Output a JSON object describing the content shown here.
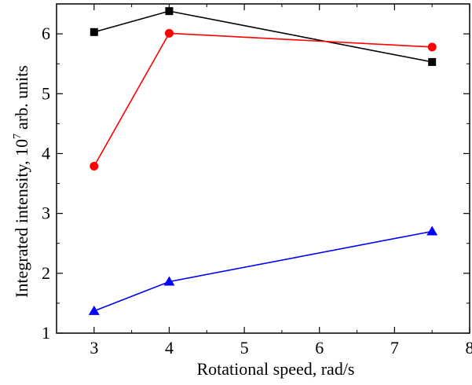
{
  "chart_data": {
    "type": "line",
    "xlabel": "Rotational speed, rad/s",
    "ylabel_main": "Integrated intensity, 10",
    "ylabel_sup": "7",
    "ylabel_tail": "arb. units",
    "xlim": [
      2.5,
      8
    ],
    "ylim": [
      1,
      6.5
    ],
    "xticks": [
      3,
      4,
      5,
      6,
      7,
      8
    ],
    "yticks": [
      1,
      2,
      3,
      4,
      5,
      6
    ],
    "x": [
      3,
      4,
      7.5
    ],
    "series": [
      {
        "marker": "square",
        "color": "#000000",
        "values": [
          6.03,
          6.38,
          5.53
        ]
      },
      {
        "marker": "circle",
        "color": "#ff0000",
        "values": [
          3.79,
          6.01,
          5.78
        ]
      },
      {
        "marker": "triangle",
        "color": "#0000ff",
        "values": [
          1.37,
          1.86,
          2.7
        ]
      }
    ]
  }
}
